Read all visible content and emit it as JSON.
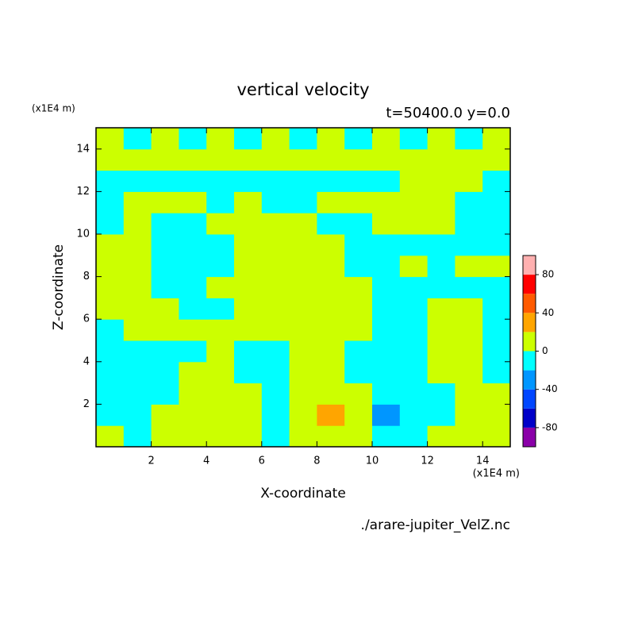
{
  "chart_data": {
    "type": "contour",
    "title": "vertical velocity",
    "subtitle": "t=50400.0 y=0.0",
    "x_label": "X-coordinate",
    "y_label": "Z-coordinate",
    "x_unit": "(x1E4 m)",
    "y_unit": "(x1E4 m)",
    "footnote": "./arare-jupiter_VelZ.nc",
    "x": [
      0.5,
      1.5,
      2.5,
      3.5,
      4.5,
      5.5,
      6.5,
      7.5,
      8.5,
      9.5,
      10.5,
      11.5,
      12.5,
      13.5,
      14.5
    ],
    "y": [
      0.5,
      1.5,
      2.5,
      3.5,
      4.5,
      5.5,
      6.5,
      7.5,
      8.5,
      9.5,
      10.5,
      11.5,
      12.5,
      13.5,
      14.5
    ],
    "z": [
      [
        10,
        -10,
        10,
        10,
        10,
        10,
        -10,
        10,
        10,
        10,
        -10,
        -10,
        10,
        10,
        10
      ],
      [
        -10,
        -10,
        10,
        10,
        10,
        10,
        -10,
        10,
        30,
        10,
        -30,
        -10,
        -10,
        10,
        10
      ],
      [
        -10,
        -10,
        -10,
        10,
        10,
        10,
        -10,
        10,
        10,
        10,
        -10,
        -10,
        -10,
        10,
        10
      ],
      [
        -10,
        -10,
        -10,
        10,
        10,
        -10,
        -10,
        10,
        10,
        -10,
        -10,
        -10,
        10,
        10,
        -10
      ],
      [
        -10,
        -10,
        -10,
        -10,
        10,
        -10,
        -10,
        10,
        10,
        -10,
        -10,
        -10,
        10,
        10,
        -10
      ],
      [
        -10,
        10,
        10,
        10,
        10,
        10,
        10,
        10,
        10,
        10,
        -10,
        -10,
        10,
        10,
        -10
      ],
      [
        10,
        10,
        10,
        -10,
        -10,
        10,
        10,
        10,
        10,
        10,
        -10,
        -10,
        10,
        10,
        -10
      ],
      [
        10,
        10,
        -10,
        -10,
        10,
        10,
        10,
        10,
        10,
        10,
        -10,
        -10,
        -10,
        -10,
        -10
      ],
      [
        10,
        10,
        -10,
        -10,
        -10,
        10,
        10,
        10,
        10,
        -10,
        -10,
        10,
        -10,
        10,
        10
      ],
      [
        10,
        10,
        -10,
        -10,
        -10,
        10,
        10,
        10,
        10,
        -10,
        -10,
        -10,
        -10,
        -10,
        -10
      ],
      [
        -10,
        10,
        -10,
        -10,
        10,
        10,
        10,
        10,
        -10,
        -10,
        10,
        10,
        10,
        -10,
        -10
      ],
      [
        -10,
        10,
        10,
        10,
        -10,
        10,
        -10,
        -10,
        10,
        10,
        10,
        10,
        10,
        -10,
        -10
      ],
      [
        -10,
        -10,
        -10,
        -10,
        -10,
        -10,
        -10,
        -10,
        -10,
        -10,
        -10,
        10,
        10,
        10,
        -10
      ],
      [
        10,
        10,
        10,
        10,
        10,
        10,
        10,
        10,
        10,
        10,
        10,
        10,
        10,
        10,
        10
      ],
      [
        10,
        -10,
        10,
        -10,
        10,
        -10,
        10,
        -10,
        10,
        -10,
        10,
        -10,
        10,
        -10,
        10
      ]
    ],
    "xlim": [
      0,
      15
    ],
    "ylim": [
      0,
      15
    ],
    "xticks": [
      2,
      4,
      6,
      8,
      10,
      12,
      14
    ],
    "yticks": [
      2,
      4,
      6,
      8,
      10,
      12,
      14
    ],
    "levels": [
      -100,
      -80,
      -60,
      -40,
      -20,
      0,
      20,
      40,
      60,
      80,
      100
    ],
    "colors": [
      "#8a00a8",
      "#0000c8",
      "#0046ff",
      "#0096ff",
      "#00ffff",
      "#ccff00",
      "#ffa500",
      "#ff5a00",
      "#ff0000",
      "#ffb0b0"
    ],
    "colorbar_ticks": [
      -80,
      -40,
      0,
      40,
      80
    ]
  }
}
